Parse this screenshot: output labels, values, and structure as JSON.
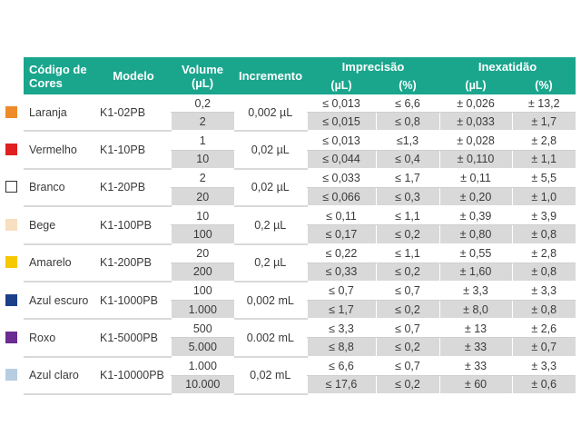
{
  "headers": {
    "color_code": "Código de Cores",
    "model": "Modelo",
    "volume": "Volume (µL)",
    "increment": "Incremento",
    "precision": "Imprecisão",
    "inaccuracy": "Inexatidão",
    "precision_ul": "(µL)",
    "precision_pct": "(%)",
    "inaccuracy_ul": "(µL)",
    "inaccuracy_pct": "(%)"
  },
  "rows": [
    {
      "color": "Laranja",
      "swatch": "#ef8a2a",
      "model": "K1-02PB",
      "increment": "0,002 µL",
      "v": [
        {
          "volume": "0,2",
          "p_ul": "≤ 0,013",
          "p_pct": "≤ 6,6",
          "i_ul": "± 0,026",
          "i_pct": "± 13,2"
        },
        {
          "volume": "2",
          "p_ul": "≤ 0,015",
          "p_pct": "≤ 0,8",
          "i_ul": "± 0,033",
          "i_pct": "± 1,7"
        }
      ]
    },
    {
      "color": "Vermelho",
      "swatch": "#e02020",
      "model": "K1-10PB",
      "increment": "0,02 µL",
      "v": [
        {
          "volume": "1",
          "p_ul": "≤ 0,013",
          "p_pct": "≤1,3",
          "i_ul": "± 0,028",
          "i_pct": "± 2,8"
        },
        {
          "volume": "10",
          "p_ul": "≤ 0,044",
          "p_pct": "≤ 0,4",
          "i_ul": "± 0,110",
          "i_pct": "± 1,1"
        }
      ]
    },
    {
      "color": "Branco",
      "swatch": "#ffffff",
      "model": "K1-20PB",
      "increment": "0,02 µL",
      "v": [
        {
          "volume": "2",
          "p_ul": "≤ 0,033",
          "p_pct": "≤ 1,7",
          "i_ul": "± 0,11",
          "i_pct": "± 5,5"
        },
        {
          "volume": "20",
          "p_ul": "≤ 0,066",
          "p_pct": "≤ 0,3",
          "i_ul": "± 0,20",
          "i_pct": "± 1,0"
        }
      ]
    },
    {
      "color": "Bege",
      "swatch": "#f7dfbf",
      "model": "K1-100PB",
      "increment": "0,2 µL",
      "v": [
        {
          "volume": "10",
          "p_ul": "≤ 0,11",
          "p_pct": "≤ 1,1",
          "i_ul": "± 0,39",
          "i_pct": "± 3,9"
        },
        {
          "volume": "100",
          "p_ul": "≤ 0,17",
          "p_pct": "≤ 0,2",
          "i_ul": "± 0,80",
          "i_pct": "± 0,8"
        }
      ]
    },
    {
      "color": "Amarelo",
      "swatch": "#f5c800",
      "model": "K1-200PB",
      "increment": "0,2 µL",
      "v": [
        {
          "volume": "20",
          "p_ul": "≤ 0,22",
          "p_pct": "≤ 1,1",
          "i_ul": "± 0,55",
          "i_pct": "± 2,8"
        },
        {
          "volume": "200",
          "p_ul": "≤ 0,33",
          "p_pct": "≤ 0,2",
          "i_ul": "± 1,60",
          "i_pct": "± 0,8"
        }
      ]
    },
    {
      "color": "Azul escuro",
      "swatch": "#1c3f8a",
      "model": "K1-1000PB",
      "increment": "0,002 mL",
      "v": [
        {
          "volume": "100",
          "p_ul": "≤ 0,7",
          "p_pct": "≤ 0,7",
          "i_ul": "± 3,3",
          "i_pct": "± 3,3"
        },
        {
          "volume": "1.000",
          "p_ul": "≤ 1,7",
          "p_pct": "≤ 0,2",
          "i_ul": "± 8,0",
          "i_pct": "± 0,8"
        }
      ]
    },
    {
      "color": "Roxo",
      "swatch": "#6a2c91",
      "model": "K1-5000PB",
      "increment": "0.002 mL",
      "v": [
        {
          "volume": "500",
          "p_ul": "≤ 3,3",
          "p_pct": "≤ 0,7",
          "i_ul": "± 13",
          "i_pct": "± 2,6"
        },
        {
          "volume": "5.000",
          "p_ul": "≤ 8,8",
          "p_pct": "≤ 0,2",
          "i_ul": "± 33",
          "i_pct": "± 0,7"
        }
      ]
    },
    {
      "color": "Azul claro",
      "swatch": "#b7cde0",
      "model": "K1-10000PB",
      "increment": "0,02 mL",
      "v": [
        {
          "volume": "1.000",
          "p_ul": "≤ 6,6",
          "p_pct": "≤ 0,7",
          "i_ul": "± 33",
          "i_pct": "± 3,3"
        },
        {
          "volume": "10.000",
          "p_ul": "≤ 17,6",
          "p_pct": "≤ 0,2",
          "i_ul": "± 60",
          "i_pct": "± 0,6"
        }
      ]
    }
  ]
}
